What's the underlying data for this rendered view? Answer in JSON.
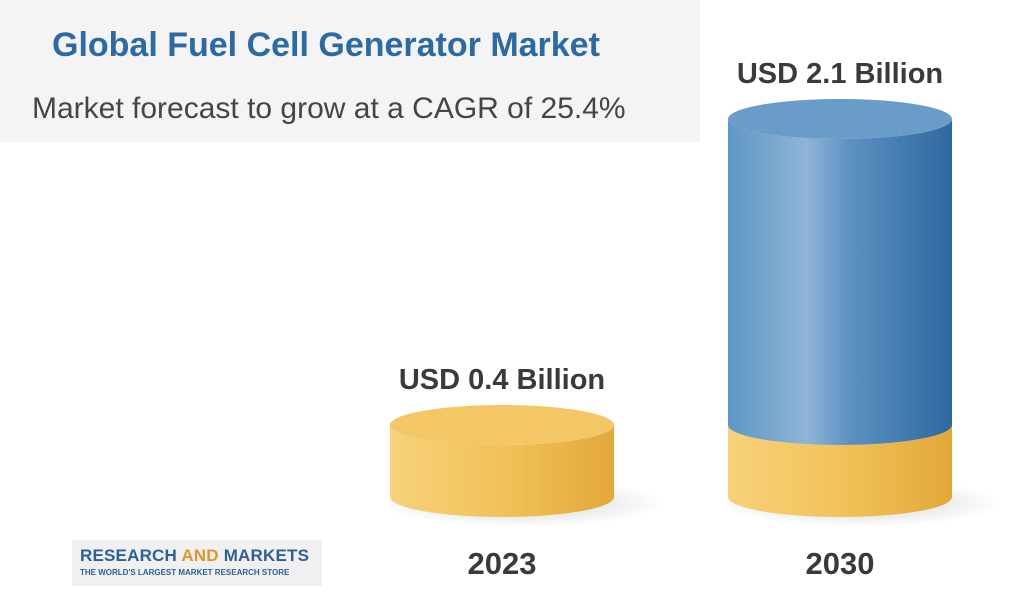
{
  "chart_data": {
    "type": "bar",
    "title": "Global Fuel Cell Generator Market",
    "subtitle": "Market forecast to grow at a CAGR of 25.4%",
    "categories": [
      "2023",
      "2030"
    ],
    "values": [
      0.4,
      2.1
    ],
    "unit": "USD Billion",
    "value_labels": [
      "USD 0.4 Billion",
      "USD 2.1 Billion"
    ],
    "style": "3d-cylinder",
    "colors": {
      "base": "#f2c25a",
      "base_dark": "#e2a83a",
      "growth": "#4a86bb",
      "growth_dark": "#2f68a0",
      "growth_top": "#6a9cc9"
    }
  },
  "branding": {
    "logo_word_1": "RESEARCH",
    "logo_word_2": "AND",
    "logo_word_3": "MARKETS",
    "tagline": "THE WORLD'S LARGEST MARKET RESEARCH STORE"
  }
}
